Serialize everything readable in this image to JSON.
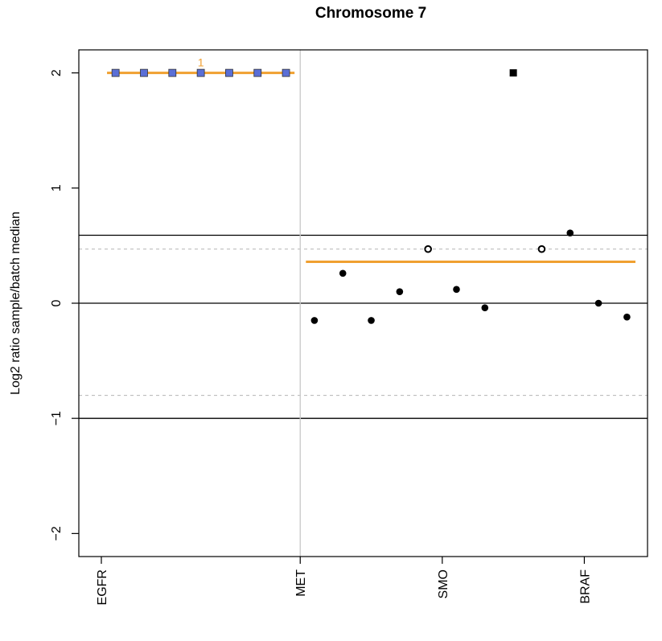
{
  "chart_data": {
    "type": "scatter",
    "title": "Chromosome 7",
    "xlabel": "",
    "ylabel": "Log2 ratio sample/batch median",
    "ylim": [
      -2.2,
      2.2
    ],
    "yticks": [
      -2,
      -1,
      0,
      1,
      2
    ],
    "ytick_labels": [
      "−2",
      "−1",
      "0",
      "1",
      "2"
    ],
    "x_index_range": [
      0,
      19.5
    ],
    "gene_ticks": [
      {
        "label": "EGFR",
        "x": 0
      },
      {
        "label": "MET",
        "x": 7
      },
      {
        "label": "SMO",
        "x": 12
      },
      {
        "label": "BRAF",
        "x": 17
      }
    ],
    "separator_x": 7,
    "reference_lines": [
      0.59,
      0,
      -1
    ],
    "threshold_lines_dashed": [
      0.47,
      -0.8
    ],
    "segments": [
      {
        "label": "1",
        "x_start": 0.2,
        "x_end": 6.8,
        "y": 2.0
      },
      {
        "label": "",
        "x_start": 7.2,
        "x_end": 18.8,
        "y": 0.36
      }
    ],
    "points": [
      {
        "x": 0.5,
        "y": 2.0,
        "style": "capped"
      },
      {
        "x": 1.5,
        "y": 2.0,
        "style": "capped"
      },
      {
        "x": 2.5,
        "y": 2.0,
        "style": "capped"
      },
      {
        "x": 3.5,
        "y": 2.0,
        "style": "capped"
      },
      {
        "x": 4.5,
        "y": 2.0,
        "style": "capped"
      },
      {
        "x": 5.5,
        "y": 2.0,
        "style": "capped"
      },
      {
        "x": 6.5,
        "y": 2.0,
        "style": "capped"
      },
      {
        "x": 7.5,
        "y": -0.15,
        "style": "filled"
      },
      {
        "x": 8.5,
        "y": 0.26,
        "style": "filled"
      },
      {
        "x": 9.5,
        "y": -0.15,
        "style": "filled"
      },
      {
        "x": 10.5,
        "y": 0.1,
        "style": "filled"
      },
      {
        "x": 11.5,
        "y": 0.47,
        "style": "open"
      },
      {
        "x": 12.5,
        "y": 0.12,
        "style": "filled"
      },
      {
        "x": 13.5,
        "y": -0.04,
        "style": "filled"
      },
      {
        "x": 14.5,
        "y": 2.0,
        "style": "square"
      },
      {
        "x": 15.5,
        "y": 0.47,
        "style": "open"
      },
      {
        "x": 16.5,
        "y": 0.61,
        "style": "filled"
      },
      {
        "x": 17.5,
        "y": 0.0,
        "style": "filled"
      },
      {
        "x": 18.5,
        "y": -0.12,
        "style": "filled"
      }
    ],
    "colors": {
      "segment": "#f0a030",
      "capped_marker": "#5b6fd6",
      "point": "#000000",
      "separator": "#c8c8c8",
      "dashed": "#bdbdbd",
      "segment_label": "#f0a030"
    },
    "grid": false,
    "legend": "none"
  }
}
